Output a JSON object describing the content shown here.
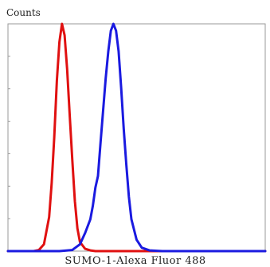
{
  "chart_data": {
    "type": "line",
    "title": "",
    "xlabel": "SUMO-1-Alexa Fluor 488",
    "ylabel": "Counts",
    "xlim": [
      0,
      100
    ],
    "ylim": [
      0,
      100
    ],
    "grid": false,
    "legend": "none",
    "series": [
      {
        "color": "#e01010",
        "x": [
          0,
          10,
          12,
          14,
          16,
          17,
          18,
          19,
          20,
          21,
          22,
          23,
          24,
          25,
          26,
          27,
          28,
          30,
          32,
          34,
          40,
          60,
          80,
          100
        ],
        "values": [
          0,
          0,
          0.5,
          3,
          15,
          30,
          50,
          75,
          92,
          100,
          95,
          80,
          60,
          40,
          22,
          10,
          4,
          1,
          0.3,
          0,
          0,
          0,
          0,
          0
        ]
      },
      {
        "color": "#1a1ae0",
        "x": [
          0,
          20,
          25,
          28,
          30,
          32,
          33,
          34,
          35,
          36,
          37,
          38,
          39,
          40,
          41,
          42,
          43,
          44,
          45,
          46,
          47,
          48,
          50,
          52,
          55,
          60,
          80,
          100
        ],
        "values": [
          0,
          0,
          0.5,
          3,
          8,
          14,
          20,
          28,
          33,
          48,
          62,
          76,
          88,
          97,
          100,
          97,
          88,
          72,
          54,
          38,
          24,
          14,
          5,
          1.5,
          0.3,
          0,
          0,
          0
        ]
      }
    ]
  }
}
